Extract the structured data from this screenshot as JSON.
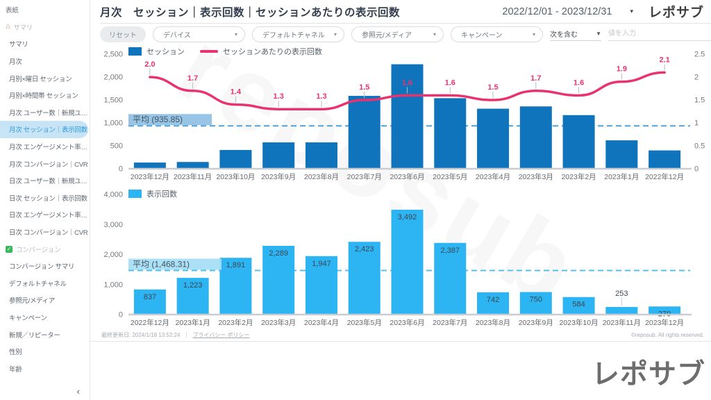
{
  "header": {
    "title": "月次　セッション｜表示回数｜セッションあたりの表示回数",
    "date_range": "2022/12/01 - 2023/12/31",
    "logo": "レポサブ"
  },
  "sidebar": {
    "items": [
      {
        "label": "表紙",
        "type": "cover"
      },
      {
        "label": "サマリ",
        "type": "section",
        "icon": "home-icon"
      },
      {
        "label": "サマリ",
        "type": "item"
      },
      {
        "label": "月次",
        "type": "item"
      },
      {
        "label": "月別×曜日 セッション",
        "type": "item"
      },
      {
        "label": "月別×時間帯 セッション",
        "type": "item"
      },
      {
        "label": "月次 ユーザー数｜新規ユ…",
        "type": "item"
      },
      {
        "label": "月次 セッション｜表示回数",
        "type": "item",
        "selected": true
      },
      {
        "label": "月次 エンゲージメント率…",
        "type": "item"
      },
      {
        "label": "月次 コンバージョン｜CVR",
        "type": "item"
      },
      {
        "label": "日次 ユーザー数｜新規ユ…",
        "type": "item"
      },
      {
        "label": "日次 セッション｜表示回数",
        "type": "item"
      },
      {
        "label": "日次 エンゲージメント率…",
        "type": "item"
      },
      {
        "label": "日次 コンバージョン｜CVR",
        "type": "item"
      },
      {
        "label": "コンバージョン",
        "type": "section",
        "icon": "check-icon"
      },
      {
        "label": "コンバージョン サマリ",
        "type": "item"
      },
      {
        "label": "デフォルトチャネル",
        "type": "item"
      },
      {
        "label": "参照元/メディア",
        "type": "item"
      },
      {
        "label": "キャンペーン",
        "type": "item"
      },
      {
        "label": "新規／リピーター",
        "type": "item"
      },
      {
        "label": "性別",
        "type": "item"
      },
      {
        "label": "年齢",
        "type": "item"
      }
    ],
    "collapse_label": "‹"
  },
  "filters": {
    "reset_label": "リセット",
    "dropdowns": [
      "デバイス",
      "デフォルトチャネル",
      "参照元/メディア",
      "キャンペーン"
    ],
    "condition": "次を含む",
    "value_placeholder": "値を入力"
  },
  "chart_data": [
    {
      "type": "bar+line",
      "categories": [
        "2023年12月",
        "2023年11月",
        "2023年10月",
        "2023年9月",
        "2023年8月",
        "2023年7月",
        "2023年6月",
        "2023年5月",
        "2023年4月",
        "2023年3月",
        "2023年2月",
        "2023年1月",
        "2022年12月"
      ],
      "series": [
        {
          "name": "セッション",
          "type": "bar",
          "axis": "left",
          "color": "#0f74bb",
          "values": [
            135,
            148,
            410,
            575,
            575,
            1590,
            2280,
            1540,
            1310,
            1360,
            1170,
            620,
            400
          ]
        },
        {
          "name": "セッションあたりの表示回数",
          "type": "line",
          "axis": "right",
          "color": "#e8336e",
          "values": [
            2.0,
            1.7,
            1.4,
            1.3,
            1.3,
            1.5,
            1.6,
            1.6,
            1.5,
            1.7,
            1.6,
            1.9,
            2.1
          ]
        }
      ],
      "left_axis": {
        "min": 0,
        "max": 2500,
        "step": 500
      },
      "right_axis": {
        "min": 0,
        "max": 2.5,
        "step": 0.5
      },
      "average": {
        "label": "平均 (935.85)",
        "value": 935.85,
        "line_color": "#4fa0d8",
        "label_bg": "#8fc0e4"
      },
      "bar_values_labeled": false,
      "line_values_labeled": true,
      "legend_position": "top-left",
      "grid": false
    },
    {
      "type": "bar",
      "categories": [
        "2022年12月",
        "2023年1月",
        "2023年2月",
        "2023年3月",
        "2023年4月",
        "2023年5月",
        "2023年6月",
        "2023年7月",
        "2023年8月",
        "2023年9月",
        "2023年10月",
        "2023年11月",
        "2023年12月"
      ],
      "series": [
        {
          "name": "表示回数",
          "type": "bar",
          "axis": "left",
          "color": "#2db4f2",
          "values": [
            837,
            1223,
            1891,
            2289,
            1947,
            2423,
            3492,
            2387,
            742,
            750,
            584,
            253,
            270
          ]
        }
      ],
      "left_axis": {
        "min": 0,
        "max": 4000,
        "step": 1000
      },
      "average": {
        "label": "平均 (1,468.31)",
        "value": 1468.31,
        "line_color": "#53c0f0",
        "label_bg": "#a5ddf6"
      },
      "bar_values_labeled": true,
      "label_outside_indices": [
        11
      ],
      "outside_label_color": "#4ab3ef",
      "legend_position": "top-left",
      "grid": false
    }
  ],
  "footer": {
    "last_updated": "最終更新日: 2024/1/18 13:52:24",
    "separator": "｜",
    "privacy_link": "プライバシー ポリシー",
    "copyright": "©reposub. All rights reserved.",
    "big_logo": "レポサブ"
  },
  "watermark": "reposub"
}
